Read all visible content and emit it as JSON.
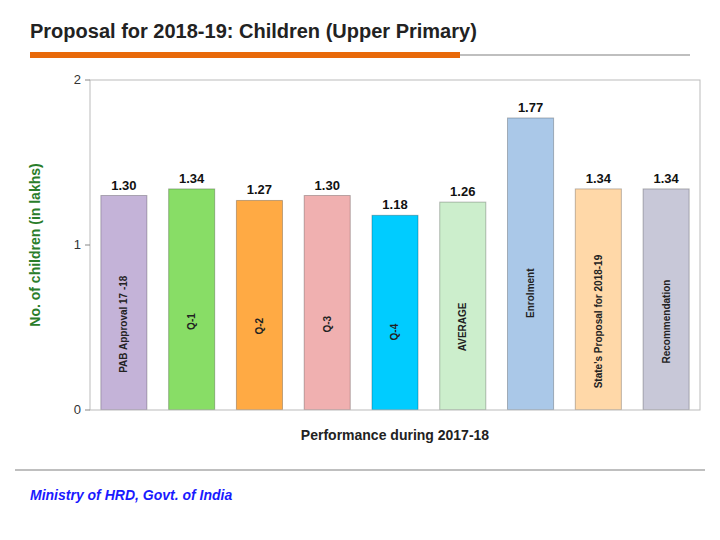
{
  "chart_data": {
    "type": "bar",
    "title": "Proposal for  2018-19: Children (Upper Primary)",
    "x_label": "Performance during 2017-18",
    "y_label": "No. of children (in lakhs)",
    "categories": [
      "PAB Approval 17 -18",
      "Q-1",
      "Q-2",
      "Q-3",
      "Q-4",
      "AVERAGE",
      "Enrolment",
      "State’s Proposal for 2018-19",
      "Recommendation"
    ],
    "values": [
      1.3,
      1.34,
      1.27,
      1.3,
      1.18,
      1.26,
      1.77,
      1.34,
      1.34
    ],
    "value_labels": [
      "1.30",
      "1.34",
      "1.27",
      "1.30",
      "1.18",
      "1.26",
      "1.77",
      "1.34",
      "1.34"
    ],
    "colors": [
      "#c4b3d8",
      "#88dd66",
      "#ffaa44",
      "#f0b0b0",
      "#00ccff",
      "#cceecc",
      "#aac8e8",
      "#ffd8a8",
      "#c8c8d8"
    ],
    "ylim": [
      0,
      2
    ],
    "yticks": [
      0,
      1,
      2
    ],
    "grid": false,
    "data_labels": true,
    "tick_labels": "y",
    "annotations": [
      "Ministry of HRD, Govt. of India"
    ]
  }
}
